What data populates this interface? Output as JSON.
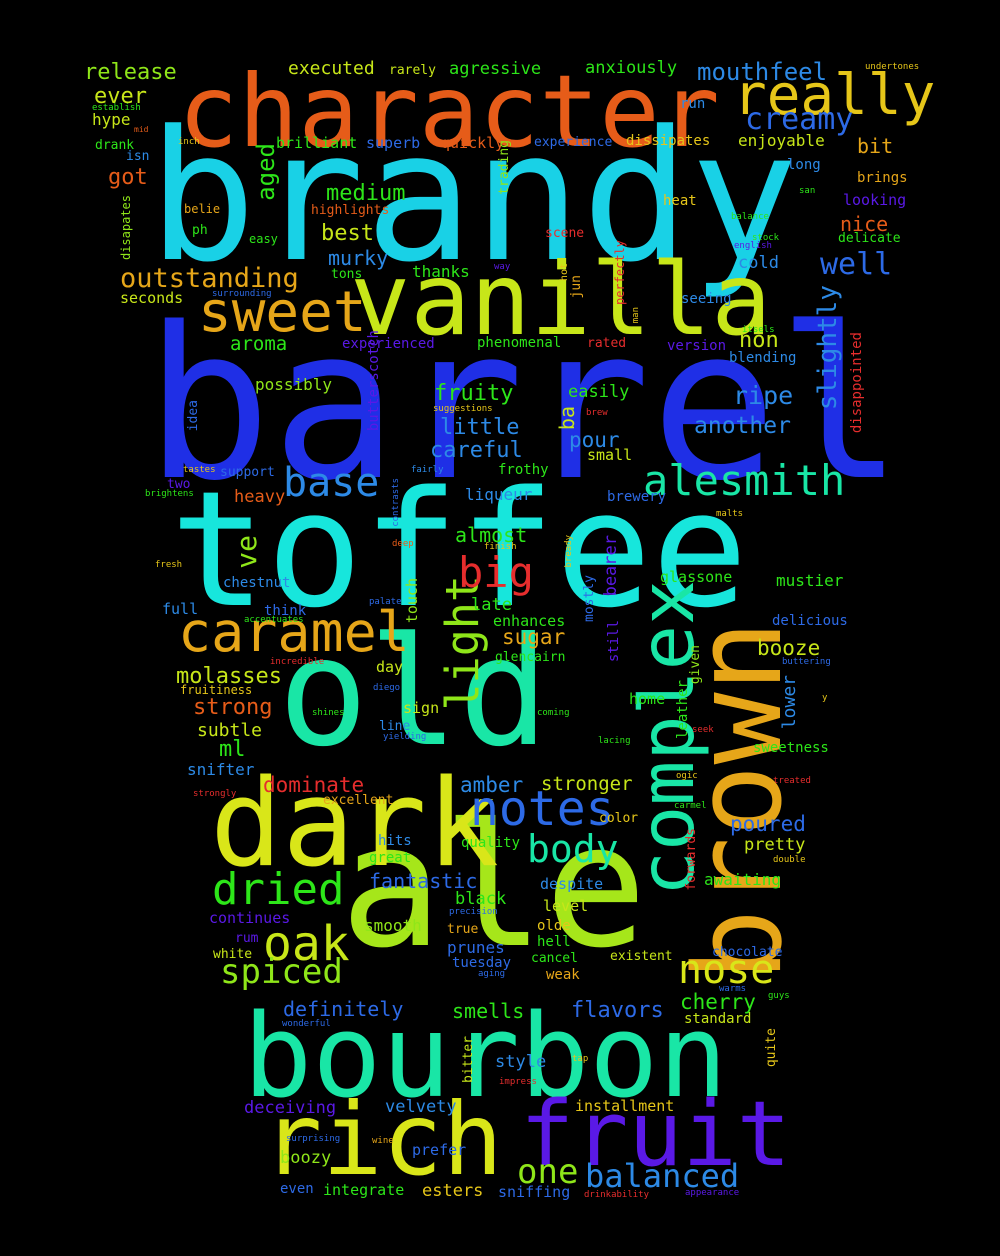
{
  "words": [
    {
      "text": "barrel",
      "color": "#1f2fe6"
    },
    {
      "text": "brandy",
      "color": "#19d1e6"
    },
    {
      "text": "toffee",
      "color": "#17e6dc"
    },
    {
      "text": "old",
      "color": "#19e6a6"
    },
    {
      "text": "ale",
      "color": "#a6e61a"
    },
    {
      "text": "bourbon",
      "color": "#19e6a6"
    },
    {
      "text": "dark",
      "color": "#d9e619"
    },
    {
      "text": "character",
      "color": "#e65c19"
    },
    {
      "text": "vanilla",
      "color": "#c7e619"
    },
    {
      "text": "brown",
      "color": "#e6a619"
    },
    {
      "text": "rich",
      "color": "#d9e619"
    },
    {
      "text": "fruit",
      "color": "#5a19e6"
    },
    {
      "text": "complex",
      "color": "#19e6a6"
    },
    {
      "text": "caramel",
      "color": "#e6a619"
    },
    {
      "text": "really",
      "color": "#e6c619"
    },
    {
      "text": "sweet",
      "color": "#e6a619"
    },
    {
      "text": "notes",
      "color": "#2d6ae6"
    },
    {
      "text": "alesmith",
      "color": "#19e6a6"
    },
    {
      "text": "light",
      "color": "#8fe619"
    },
    {
      "text": "base",
      "color": "#2d8ae6"
    },
    {
      "text": "big",
      "color": "#e62d2d"
    },
    {
      "text": "body",
      "color": "#19e6a6"
    },
    {
      "text": "dried",
      "color": "#2de619"
    },
    {
      "text": "oak",
      "color": "#c7e619"
    },
    {
      "text": "nose",
      "color": "#d9e619"
    },
    {
      "text": "creamy",
      "color": "#2d6ae6"
    },
    {
      "text": "spiced",
      "color": "#8fe619"
    },
    {
      "text": "balanced",
      "color": "#2d8ae6"
    },
    {
      "text": "outstanding",
      "color": "#e6a619"
    },
    {
      "text": "well",
      "color": "#2d6ae6"
    },
    {
      "text": "slightly",
      "color": "#2d8ae6"
    },
    {
      "text": "one",
      "color": "#8fe619"
    },
    {
      "text": "mouthfeel",
      "color": "#2d8ae6"
    },
    {
      "text": "release",
      "color": "#8fe619"
    },
    {
      "text": "ever",
      "color": "#c7e619"
    },
    {
      "text": "executed",
      "color": "#c7e619"
    },
    {
      "text": "rarely",
      "color": "#c7e619"
    },
    {
      "text": "agressive",
      "color": "#2de619"
    },
    {
      "text": "anxiously",
      "color": "#2de619"
    },
    {
      "text": "undertones",
      "color": "#e6c619"
    },
    {
      "text": "establish",
      "color": "#2de619"
    },
    {
      "text": "hype",
      "color": "#c7e619"
    },
    {
      "text": "mid",
      "color": "#e65c19"
    },
    {
      "text": "drank",
      "color": "#2de619"
    },
    {
      "text": "isn",
      "color": "#2d8ae6"
    },
    {
      "text": "got",
      "color": "#e65c19"
    },
    {
      "text": "inch",
      "color": "#e6c619"
    },
    {
      "text": "brilliant",
      "color": "#2de619"
    },
    {
      "text": "superb",
      "color": "#2d6ae6"
    },
    {
      "text": "quickly",
      "color": "#e65c19"
    },
    {
      "text": "experience",
      "color": "#2d6ae6"
    },
    {
      "text": "dissipates",
      "color": "#e6c619"
    },
    {
      "text": "enjoyable",
      "color": "#c7e619"
    },
    {
      "text": "bit",
      "color": "#e6a619"
    },
    {
      "text": "run",
      "color": "#2d8ae6"
    },
    {
      "text": "long",
      "color": "#2d8ae6"
    },
    {
      "text": "brings",
      "color": "#e6a619"
    },
    {
      "text": "aged",
      "color": "#2de619"
    },
    {
      "text": "medium",
      "color": "#2de619"
    },
    {
      "text": "highlights",
      "color": "#e65c19"
    },
    {
      "text": "belie",
      "color": "#e6a619"
    },
    {
      "text": "ph",
      "color": "#2de619"
    },
    {
      "text": "easy",
      "color": "#2de619"
    },
    {
      "text": "heat",
      "color": "#e6c619"
    },
    {
      "text": "san",
      "color": "#2de619"
    },
    {
      "text": "looking",
      "color": "#5a19e6"
    },
    {
      "text": "nice",
      "color": "#e65c19"
    },
    {
      "text": "balance",
      "color": "#2de619"
    },
    {
      "text": "delicate",
      "color": "#2de619"
    },
    {
      "text": "stock",
      "color": "#2de619"
    },
    {
      "text": "english",
      "color": "#5a19e6"
    },
    {
      "text": "disapates",
      "color": "#8fe619"
    },
    {
      "text": "trading",
      "color": "#8fe619"
    },
    {
      "text": "best",
      "color": "#c7e619"
    },
    {
      "text": "scene",
      "color": "#e62d2d"
    },
    {
      "text": "murky",
      "color": "#2d8ae6"
    },
    {
      "text": "tons",
      "color": "#2de619"
    },
    {
      "text": "thanks",
      "color": "#2de619"
    },
    {
      "text": "way",
      "color": "#5a19e6"
    },
    {
      "text": "hot",
      "color": "#e6c619"
    },
    {
      "text": "jun",
      "color": "#e6a619"
    },
    {
      "text": "perfectly",
      "color": "#e62d2d"
    },
    {
      "text": "cold",
      "color": "#2d8ae6"
    },
    {
      "text": "seeing",
      "color": "#2d8ae6"
    },
    {
      "text": "seconds",
      "color": "#c7e619"
    },
    {
      "text": "surrounding",
      "color": "#2d6ae6"
    },
    {
      "text": "man",
      "color": "#e6c619"
    },
    {
      "text": "itsels",
      "color": "#2de619"
    },
    {
      "text": "aroma",
      "color": "#2de619"
    },
    {
      "text": "experienced",
      "color": "#5a19e6"
    },
    {
      "text": "phenomenal",
      "color": "#2de619"
    },
    {
      "text": "rated",
      "color": "#e62d2d"
    },
    {
      "text": "version",
      "color": "#5a19e6"
    },
    {
      "text": "non",
      "color": "#c7e619"
    },
    {
      "text": "blending",
      "color": "#2d8ae6"
    },
    {
      "text": "disappointed",
      "color": "#e62d2d"
    },
    {
      "text": "possibly",
      "color": "#8fe619"
    },
    {
      "text": "butterscotch",
      "color": "#5a19e6"
    },
    {
      "text": "fruity",
      "color": "#2de619"
    },
    {
      "text": "easily",
      "color": "#2de619"
    },
    {
      "text": "ripe",
      "color": "#2d8ae6"
    },
    {
      "text": "suggestions",
      "color": "#e6c619"
    },
    {
      "text": "brew",
      "color": "#e62d2d"
    },
    {
      "text": "idea",
      "color": "#2d6ae6"
    },
    {
      "text": "little",
      "color": "#2d8ae6"
    },
    {
      "text": "ba",
      "color": "#c7e619"
    },
    {
      "text": "another",
      "color": "#2d8ae6"
    },
    {
      "text": "careful",
      "color": "#2d8ae6"
    },
    {
      "text": "pour",
      "color": "#2d8ae6"
    },
    {
      "text": "small",
      "color": "#c7e619"
    },
    {
      "text": "tastes",
      "color": "#e6c619"
    },
    {
      "text": "support",
      "color": "#2d6ae6"
    },
    {
      "text": "fairly",
      "color": "#2d8ae6"
    },
    {
      "text": "frothy",
      "color": "#2de619"
    },
    {
      "text": "two",
      "color": "#5a19e6"
    },
    {
      "text": "brightens",
      "color": "#2de619"
    },
    {
      "text": "heavy",
      "color": "#e65c19"
    },
    {
      "text": "contrasts",
      "color": "#2d6ae6"
    },
    {
      "text": "liqueur",
      "color": "#2d8ae6"
    },
    {
      "text": "brewery",
      "color": "#2d6ae6"
    },
    {
      "text": "malts",
      "color": "#e6c619"
    },
    {
      "text": "deep",
      "color": "#e65c19"
    },
    {
      "text": "finish",
      "color": "#e6c619"
    },
    {
      "text": "almost",
      "color": "#2de619"
    },
    {
      "text": "fresh",
      "color": "#e6c619"
    },
    {
      "text": "ve",
      "color": "#8fe619"
    },
    {
      "text": "chestnut",
      "color": "#2d8ae6"
    },
    {
      "text": "bready",
      "color": "#e6c619"
    },
    {
      "text": "bearer",
      "color": "#5a19e6"
    },
    {
      "text": "glassone",
      "color": "#2de619"
    },
    {
      "text": "mustier",
      "color": "#2de619"
    },
    {
      "text": "full",
      "color": "#2d8ae6"
    },
    {
      "text": "think",
      "color": "#2d6ae6"
    },
    {
      "text": "palate",
      "color": "#2d6ae6"
    },
    {
      "text": "mostly",
      "color": "#2d6ae6"
    },
    {
      "text": "touch",
      "color": "#8fe619"
    },
    {
      "text": "late",
      "color": "#2de619"
    },
    {
      "text": "accentuates",
      "color": "#2de619"
    },
    {
      "text": "enhances",
      "color": "#2de619"
    },
    {
      "text": "delicious",
      "color": "#2d6ae6"
    },
    {
      "text": "sugar",
      "color": "#e6a619"
    },
    {
      "text": "still",
      "color": "#5a19e6"
    },
    {
      "text": "booze",
      "color": "#c7e619"
    },
    {
      "text": "incredible",
      "color": "#e62d2d"
    },
    {
      "text": "glencairn",
      "color": "#2de619"
    },
    {
      "text": "buttering",
      "color": "#2d6ae6"
    },
    {
      "text": "day",
      "color": "#c7e619"
    },
    {
      "text": "molasses",
      "color": "#c7e619"
    },
    {
      "text": "given",
      "color": "#8fe619"
    },
    {
      "text": "fruitiness",
      "color": "#e6c619"
    },
    {
      "text": "diego",
      "color": "#2d6ae6"
    },
    {
      "text": "home",
      "color": "#2de619"
    },
    {
      "text": "y",
      "color": "#e6c619"
    },
    {
      "text": "leather",
      "color": "#2de619"
    },
    {
      "text": "lower",
      "color": "#2d8ae6"
    },
    {
      "text": "strong",
      "color": "#e65c19"
    },
    {
      "text": "sign",
      "color": "#c7e619"
    },
    {
      "text": "shines",
      "color": "#2de619"
    },
    {
      "text": "coming",
      "color": "#2de619"
    },
    {
      "text": "line",
      "color": "#2d8ae6"
    },
    {
      "text": "subtle",
      "color": "#c7e619"
    },
    {
      "text": "yielding",
      "color": "#2d6ae6"
    },
    {
      "text": "lacing",
      "color": "#2de619"
    },
    {
      "text": "seek",
      "color": "#e62d2d"
    },
    {
      "text": "ml",
      "color": "#2de619"
    },
    {
      "text": "sweetness",
      "color": "#2de619"
    },
    {
      "text": "snifter",
      "color": "#2d8ae6"
    },
    {
      "text": "ogic",
      "color": "#e6c619"
    },
    {
      "text": "dominate",
      "color": "#e62d2d"
    },
    {
      "text": "amber",
      "color": "#2d8ae6"
    },
    {
      "text": "stronger",
      "color": "#c7e619"
    },
    {
      "text": "treated",
      "color": "#e62d2d"
    },
    {
      "text": "strongly",
      "color": "#e62d2d"
    },
    {
      "text": "excellent",
      "color": "#e6a619"
    },
    {
      "text": "carmel",
      "color": "#2de619"
    },
    {
      "text": "poured",
      "color": "#2d6ae6"
    },
    {
      "text": "hits",
      "color": "#2d8ae6"
    },
    {
      "text": "quality",
      "color": "#2de619"
    },
    {
      "text": "color",
      "color": "#e6c619"
    },
    {
      "text": "pretty",
      "color": "#c7e619"
    },
    {
      "text": "great",
      "color": "#2de619"
    },
    {
      "text": "double",
      "color": "#e6c619"
    },
    {
      "text": "forwards",
      "color": "#e62d2d"
    },
    {
      "text": "fantastic",
      "color": "#2d6ae6"
    },
    {
      "text": "despite",
      "color": "#2d8ae6"
    },
    {
      "text": "awaiting",
      "color": "#2de619"
    },
    {
      "text": "black",
      "color": "#2de619"
    },
    {
      "text": "level",
      "color": "#c7e619"
    },
    {
      "text": "continues",
      "color": "#5a19e6"
    },
    {
      "text": "precision",
      "color": "#2d6ae6"
    },
    {
      "text": "smooth",
      "color": "#8fe619"
    },
    {
      "text": "true",
      "color": "#e6a619"
    },
    {
      "text": "olde",
      "color": "#e6c619"
    },
    {
      "text": "rum",
      "color": "#5a19e6"
    },
    {
      "text": "hell",
      "color": "#2de619"
    },
    {
      "text": "chocolate",
      "color": "#2d6ae6"
    },
    {
      "text": "white",
      "color": "#c7e619"
    },
    {
      "text": "prunes",
      "color": "#2d6ae6"
    },
    {
      "text": "cancel",
      "color": "#2de619"
    },
    {
      "text": "existent",
      "color": "#c7e619"
    },
    {
      "text": "tuesday",
      "color": "#2d6ae6"
    },
    {
      "text": "weak",
      "color": "#e6a619"
    },
    {
      "text": "warms",
      "color": "#2d6ae6"
    },
    {
      "text": "aging",
      "color": "#2d6ae6"
    },
    {
      "text": "guys",
      "color": "#2de619"
    },
    {
      "text": "definitely",
      "color": "#2d6ae6"
    },
    {
      "text": "smells",
      "color": "#2de619"
    },
    {
      "text": "flavors",
      "color": "#2d6ae6"
    },
    {
      "text": "cherry",
      "color": "#2de619"
    },
    {
      "text": "standard",
      "color": "#c7e619"
    },
    {
      "text": "wonderful",
      "color": "#2d6ae6"
    },
    {
      "text": "quite",
      "color": "#e6c619"
    },
    {
      "text": "bitter",
      "color": "#c7e619"
    },
    {
      "text": "tap",
      "color": "#e6c619"
    },
    {
      "text": "style",
      "color": "#2d8ae6"
    },
    {
      "text": "impress",
      "color": "#e62d2d"
    },
    {
      "text": "deceiving",
      "color": "#5a19e6"
    },
    {
      "text": "velvety",
      "color": "#2d8ae6"
    },
    {
      "text": "installment",
      "color": "#e6c619"
    },
    {
      "text": "surprising",
      "color": "#2d6ae6"
    },
    {
      "text": "wine",
      "color": "#e6a619"
    },
    {
      "text": "prefer",
      "color": "#2d6ae6"
    },
    {
      "text": "boozy",
      "color": "#8fe619"
    },
    {
      "text": "even",
      "color": "#2d6ae6"
    },
    {
      "text": "integrate",
      "color": "#2de619"
    },
    {
      "text": "esters",
      "color": "#e6c619"
    },
    {
      "text": "sniffing",
      "color": "#2d6ae6"
    },
    {
      "text": "drinkability",
      "color": "#e62d2d"
    },
    {
      "text": "appearance",
      "color": "#5a19e6"
    }
  ]
}
